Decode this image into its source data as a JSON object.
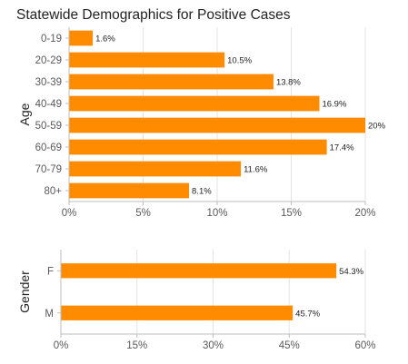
{
  "title": "Statewide Demographics for Positive Cases",
  "chart_data": [
    {
      "type": "bar",
      "orientation": "horizontal",
      "ylabel": "Age",
      "categories": [
        "0-19",
        "20-29",
        "30-39",
        "40-49",
        "50-59",
        "60-69",
        "70-79",
        "80+"
      ],
      "values": [
        1.6,
        10.5,
        13.8,
        16.9,
        20,
        17.4,
        11.6,
        8.1
      ],
      "value_labels": [
        "1.6%",
        "10.5%",
        "13.8%",
        "16.9%",
        "20%",
        "17.4%",
        "11.6%",
        "8.1%"
      ],
      "xlim": [
        0,
        20
      ],
      "x_ticks": [
        0,
        5,
        10,
        15,
        20
      ],
      "x_tick_labels": [
        "0%",
        "5%",
        "10%",
        "15%",
        "20%"
      ],
      "color": "#ff8c00",
      "grid": true
    },
    {
      "type": "bar",
      "orientation": "horizontal",
      "ylabel": "Gender",
      "categories": [
        "F",
        "M"
      ],
      "values": [
        54.3,
        45.7
      ],
      "value_labels": [
        "54.3%",
        "45.7%"
      ],
      "xlim": [
        0,
        60
      ],
      "x_ticks": [
        0,
        15,
        30,
        45,
        60
      ],
      "x_tick_labels": [
        "0%",
        "15%",
        "30%",
        "45%",
        "60%"
      ],
      "color": "#ff8c00",
      "grid": true
    }
  ]
}
